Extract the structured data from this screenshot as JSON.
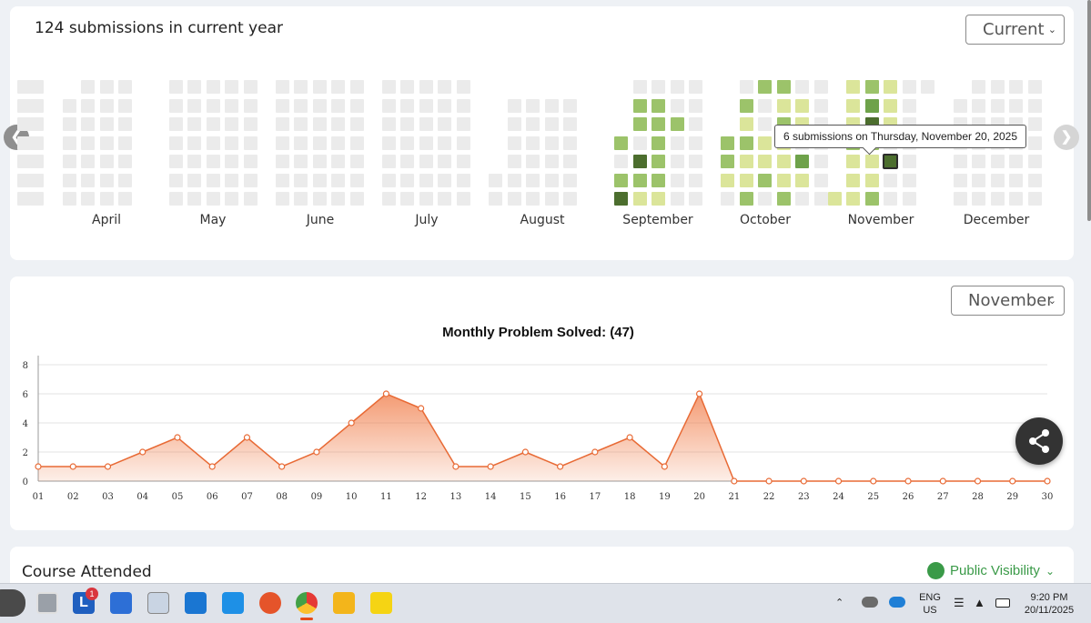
{
  "heatmap_card": {
    "title": "124 submissions in current year",
    "year_select": "Current",
    "months": [
      "April",
      "May",
      "June",
      "July",
      "August",
      "September",
      "October",
      "November",
      "December"
    ],
    "tooltip": "6 submissions on Thursday, November 20, 2025",
    "colors": {
      "empty": "#ebebeb",
      "l1": "#dbe59a",
      "l2": "#9cc36a",
      "l3": "#6ea24a",
      "l4": "#4c6e2e"
    },
    "prev_icon": "chevron-left-icon",
    "next_icon": "chevron-right-icon"
  },
  "chart_card": {
    "month_select": "November",
    "share_icon": "share-icon"
  },
  "chart_data": {
    "type": "area",
    "title": "Monthly Problem Solved: (47)",
    "x": [
      "01",
      "02",
      "03",
      "04",
      "05",
      "06",
      "07",
      "08",
      "09",
      "10",
      "11",
      "12",
      "13",
      "14",
      "15",
      "16",
      "17",
      "18",
      "19",
      "20",
      "21",
      "22",
      "23",
      "24",
      "25",
      "26",
      "27",
      "28",
      "29",
      "30"
    ],
    "values": [
      1,
      1,
      1,
      2,
      3,
      1,
      3,
      1,
      2,
      4,
      6,
      5,
      1,
      1,
      2,
      1,
      2,
      3,
      1,
      6,
      0,
      0,
      0,
      0,
      0,
      0,
      0,
      0,
      0,
      0
    ],
    "yticks": [
      0,
      2,
      4,
      6,
      8
    ],
    "ylim": [
      0,
      8
    ],
    "grid": true,
    "color": "#f07a45"
  },
  "course_card": {
    "title": "Course Attended",
    "visibility_label": "Public Visibility"
  },
  "taskbar": {
    "notification_count": "1",
    "lang_line1": "ENG",
    "lang_line2": "US",
    "time": "9:20 PM",
    "date": "20/11/2025"
  }
}
